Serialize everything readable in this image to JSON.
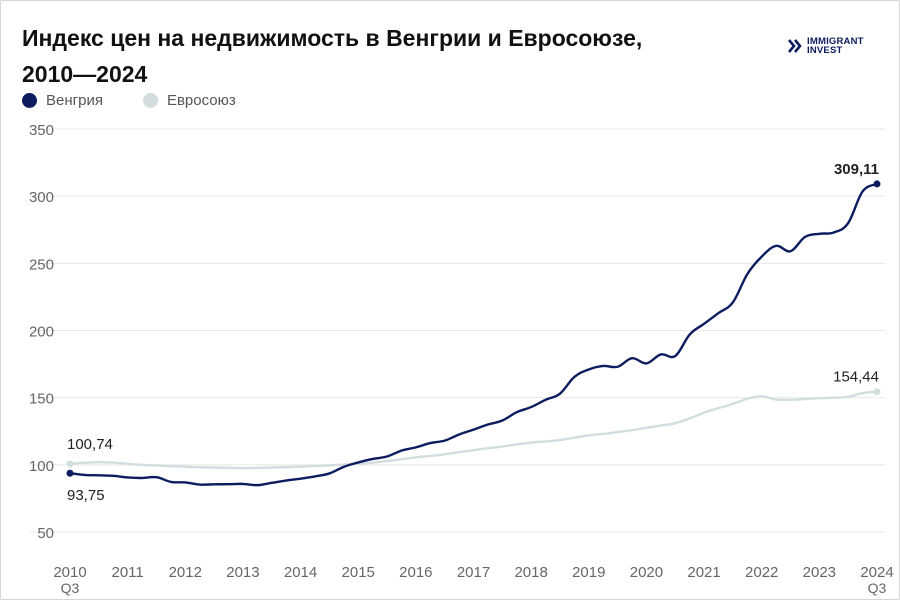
{
  "title_line1": "Индекс цен на недвижимость в Венгрии и Евросоюзе,",
  "title_line2": "2010—2024",
  "logo": {
    "line1": "IMMIGRANT",
    "line2": "INVEST",
    "icon": "double-chevron-icon"
  },
  "colors": {
    "hungary": "#0c1c5e",
    "eu": "#d3dde0",
    "grid": "#e8e8e8",
    "axis_text": "#666666"
  },
  "chart_data": {
    "type": "line",
    "ylim": [
      50,
      350
    ],
    "yticks": [
      50,
      100,
      150,
      200,
      250,
      300,
      350
    ],
    "x_start": 2010.5,
    "x_end": 2024.5,
    "xticks": [
      {
        "x": 2010.5,
        "label": "2010",
        "sub": "Q3"
      },
      {
        "x": 2011.5,
        "label": "2011"
      },
      {
        "x": 2012.5,
        "label": "2012"
      },
      {
        "x": 2013.5,
        "label": "2013"
      },
      {
        "x": 2014.5,
        "label": "2014"
      },
      {
        "x": 2015.5,
        "label": "2015"
      },
      {
        "x": 2016.5,
        "label": "2016"
      },
      {
        "x": 2017.5,
        "label": "2017"
      },
      {
        "x": 2018.5,
        "label": "2018"
      },
      {
        "x": 2019.5,
        "label": "2019"
      },
      {
        "x": 2020.5,
        "label": "2020"
      },
      {
        "x": 2021.5,
        "label": "2021"
      },
      {
        "x": 2022.5,
        "label": "2022"
      },
      {
        "x": 2023.5,
        "label": "2023"
      },
      {
        "x": 2024.5,
        "label": "2024",
        "sub": "Q3"
      }
    ],
    "series": [
      {
        "name": "Венгрия",
        "color": "#0c1c5e",
        "points": [
          [
            2010.5,
            93.75
          ],
          [
            2010.75,
            92.5
          ],
          [
            2011.0,
            92.2
          ],
          [
            2011.25,
            91.8
          ],
          [
            2011.5,
            90.6
          ],
          [
            2011.75,
            90.2
          ],
          [
            2012.0,
            90.8
          ],
          [
            2012.25,
            87.3
          ],
          [
            2012.5,
            86.9
          ],
          [
            2012.75,
            85.3
          ],
          [
            2013.0,
            85.5
          ],
          [
            2013.25,
            85.6
          ],
          [
            2013.5,
            85.8
          ],
          [
            2013.75,
            84.9
          ],
          [
            2014.0,
            86.6
          ],
          [
            2014.25,
            88.3
          ],
          [
            2014.5,
            89.7
          ],
          [
            2014.75,
            91.4
          ],
          [
            2015.0,
            93.6
          ],
          [
            2015.25,
            98.5
          ],
          [
            2015.5,
            101.8
          ],
          [
            2015.75,
            104.4
          ],
          [
            2016.0,
            106.2
          ],
          [
            2016.25,
            110.6
          ],
          [
            2016.5,
            113.0
          ],
          [
            2016.75,
            116.2
          ],
          [
            2017.0,
            118.0
          ],
          [
            2017.25,
            122.6
          ],
          [
            2017.5,
            126.2
          ],
          [
            2017.75,
            130.0
          ],
          [
            2018.0,
            133.0
          ],
          [
            2018.25,
            139.2
          ],
          [
            2018.5,
            143.0
          ],
          [
            2018.75,
            148.4
          ],
          [
            2019.0,
            153.0
          ],
          [
            2019.25,
            165.4
          ],
          [
            2019.5,
            171.0
          ],
          [
            2019.75,
            173.6
          ],
          [
            2020.0,
            173.0
          ],
          [
            2020.25,
            179.4
          ],
          [
            2020.5,
            175.5
          ],
          [
            2020.75,
            182.2
          ],
          [
            2021.0,
            181.0
          ],
          [
            2021.25,
            197.0
          ],
          [
            2021.5,
            205.0
          ],
          [
            2021.75,
            213.0
          ],
          [
            2022.0,
            221.0
          ],
          [
            2022.25,
            242.0
          ],
          [
            2022.5,
            255.0
          ],
          [
            2022.75,
            263.0
          ],
          [
            2023.0,
            259.0
          ],
          [
            2023.25,
            269.6
          ],
          [
            2023.5,
            272.0
          ],
          [
            2023.75,
            273.0
          ],
          [
            2024.0,
            280.0
          ],
          [
            2024.25,
            303.5
          ],
          [
            2024.5,
            309.11
          ]
        ]
      },
      {
        "name": "Евросоюз",
        "color": "#d3dde0",
        "points": [
          [
            2010.5,
            100.74
          ],
          [
            2010.75,
            101.5
          ],
          [
            2011.0,
            102.0
          ],
          [
            2011.25,
            101.6
          ],
          [
            2011.5,
            100.8
          ],
          [
            2011.75,
            100.0
          ],
          [
            2012.0,
            99.6
          ],
          [
            2012.25,
            99.0
          ],
          [
            2012.5,
            98.6
          ],
          [
            2012.75,
            98.2
          ],
          [
            2013.0,
            98.0
          ],
          [
            2013.25,
            97.8
          ],
          [
            2013.5,
            97.6
          ],
          [
            2013.75,
            97.7
          ],
          [
            2014.0,
            98.0
          ],
          [
            2014.25,
            98.3
          ],
          [
            2014.5,
            98.6
          ],
          [
            2014.75,
            99.2
          ],
          [
            2015.0,
            99.6
          ],
          [
            2015.25,
            100.2
          ],
          [
            2015.5,
            100.6
          ],
          [
            2015.75,
            101.6
          ],
          [
            2016.0,
            102.8
          ],
          [
            2016.25,
            104.2
          ],
          [
            2016.5,
            105.6
          ],
          [
            2016.75,
            106.6
          ],
          [
            2017.0,
            107.8
          ],
          [
            2017.25,
            109.4
          ],
          [
            2017.5,
            110.8
          ],
          [
            2017.75,
            112.4
          ],
          [
            2018.0,
            113.6
          ],
          [
            2018.25,
            115.2
          ],
          [
            2018.5,
            116.6
          ],
          [
            2018.75,
            117.4
          ],
          [
            2019.0,
            118.4
          ],
          [
            2019.25,
            120.2
          ],
          [
            2019.5,
            122.0
          ],
          [
            2019.75,
            123.0
          ],
          [
            2020.0,
            124.4
          ],
          [
            2020.25,
            125.8
          ],
          [
            2020.5,
            127.6
          ],
          [
            2020.75,
            129.2
          ],
          [
            2021.0,
            131.0
          ],
          [
            2021.25,
            134.6
          ],
          [
            2021.5,
            138.8
          ],
          [
            2021.75,
            142.2
          ],
          [
            2022.0,
            145.4
          ],
          [
            2022.25,
            149.2
          ],
          [
            2022.5,
            151.0
          ],
          [
            2022.75,
            148.6
          ],
          [
            2023.0,
            148.4
          ],
          [
            2023.25,
            149.0
          ],
          [
            2023.5,
            149.6
          ],
          [
            2023.75,
            150.0
          ],
          [
            2024.0,
            150.6
          ],
          [
            2024.25,
            153.4
          ],
          [
            2024.5,
            154.44
          ]
        ]
      }
    ],
    "annotations": [
      {
        "series": 0,
        "point": "last",
        "text": "309,11",
        "bold": true
      },
      {
        "series": 0,
        "point": "first",
        "text": "93,75",
        "bold": false
      },
      {
        "series": 1,
        "point": "last",
        "text": "154,44",
        "bold": false
      },
      {
        "series": 1,
        "point": "first",
        "text": "100,74",
        "bold": false
      }
    ],
    "grid": true,
    "legend": "top-left"
  }
}
